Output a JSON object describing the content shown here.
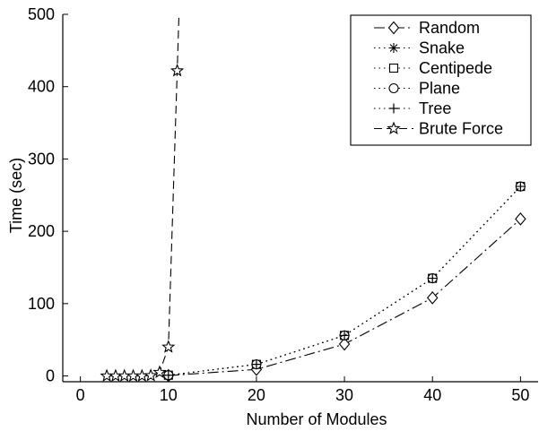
{
  "chart_data": {
    "type": "line",
    "title": "",
    "xlabel": "Number of Modules",
    "ylabel": "Time (sec)",
    "xlim": [
      -2,
      52
    ],
    "ylim": [
      -8,
      500
    ],
    "xticks": [
      0,
      10,
      20,
      30,
      40,
      50
    ],
    "yticks": [
      0,
      100,
      200,
      300,
      400,
      500
    ],
    "grid": false,
    "legend_position": "top-right",
    "series": [
      {
        "name": "Random",
        "line": "dashdot",
        "marker": "diamond",
        "x": [
          10,
          20,
          30,
          40,
          50
        ],
        "y": [
          0.5,
          9,
          44,
          108,
          217
        ]
      },
      {
        "name": "Snake",
        "line": "dotted",
        "marker": "asterisk",
        "x": [
          10,
          20,
          30,
          40,
          50
        ],
        "y": [
          1,
          16,
          56,
          135,
          262
        ]
      },
      {
        "name": "Centipede",
        "line": "dotted",
        "marker": "square",
        "x": [
          10,
          20,
          30,
          40,
          50
        ],
        "y": [
          1,
          16,
          56,
          135,
          262
        ]
      },
      {
        "name": "Plane",
        "line": "dotted",
        "marker": "circle",
        "x": [
          10,
          20,
          30,
          40,
          50
        ],
        "y": [
          1,
          16,
          56,
          135,
          262
        ]
      },
      {
        "name": "Tree",
        "line": "dotted",
        "marker": "plus",
        "x": [
          10,
          20,
          30,
          40,
          50
        ],
        "y": [
          1,
          16,
          56,
          135,
          262
        ]
      },
      {
        "name": "Brute Force",
        "line": "dashed",
        "marker": "star",
        "x": [
          3,
          4,
          5,
          6,
          7,
          8,
          9,
          10,
          11,
          11.2
        ],
        "y": [
          0,
          0,
          0,
          0,
          0,
          0.5,
          5,
          40,
          422,
          500
        ]
      }
    ]
  }
}
